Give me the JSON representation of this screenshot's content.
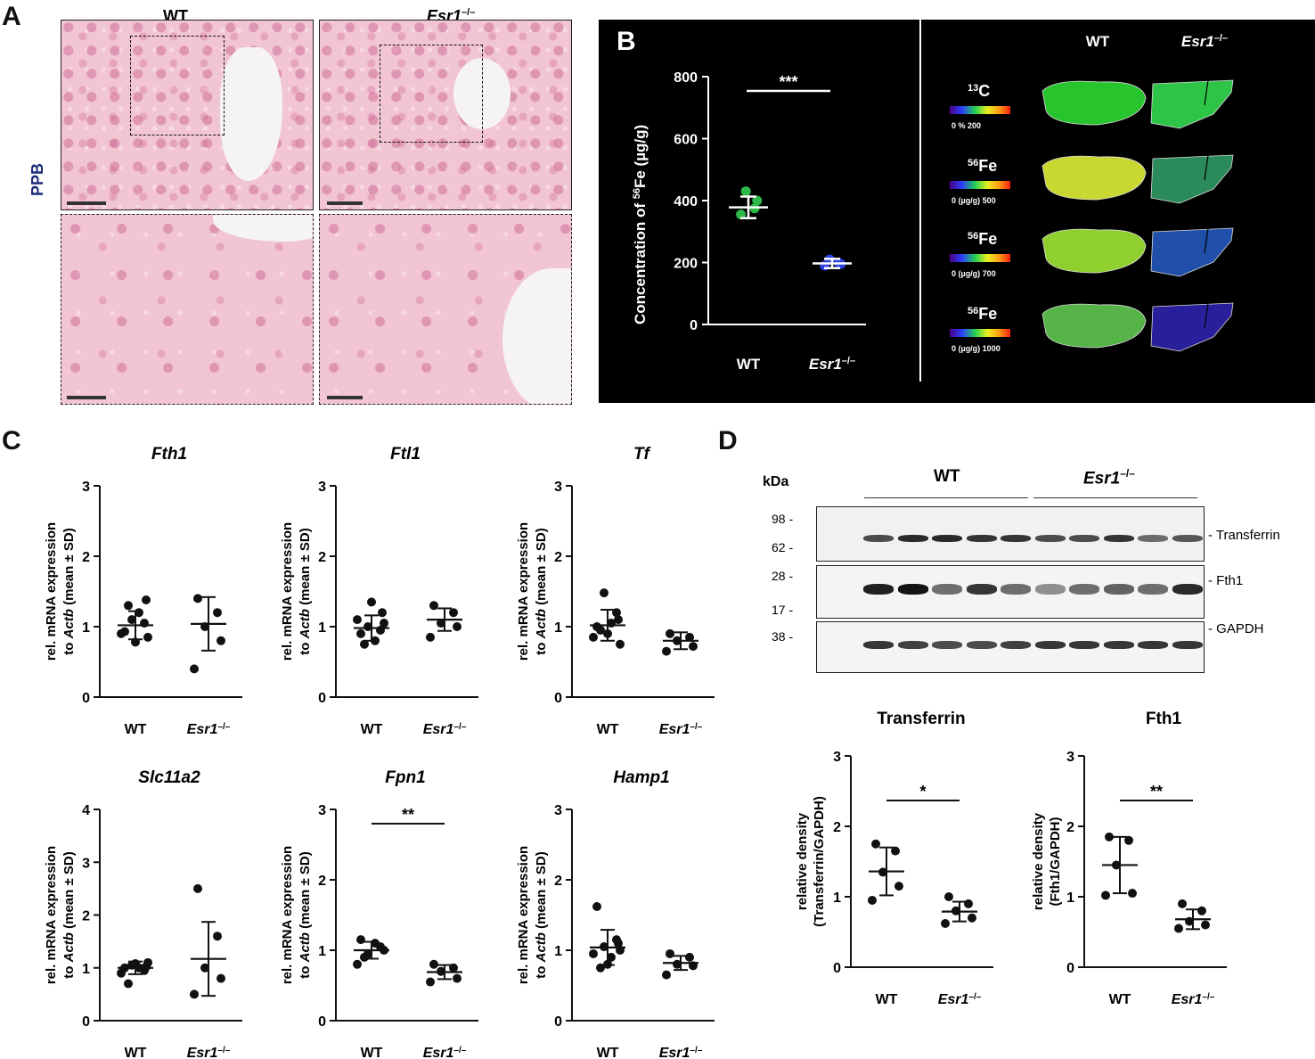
{
  "panels": {
    "a": "A",
    "b": "B",
    "c": "C",
    "d": "D"
  },
  "histology": {
    "wt": "WT",
    "ko": "Esr1",
    "ko_sup": "–/–",
    "stain": "PPB"
  },
  "iron": {
    "ylabel_pre": "Concentration of ",
    "ylabel_sup": "56",
    "ylabel_post": "Fe (µg/g)",
    "sig": "***",
    "yticks": [
      "0",
      "200",
      "400",
      "600",
      "800"
    ],
    "wt_label": "WT",
    "ko_label": "Esr1",
    "ko_sup": "–/–"
  },
  "imaging": {
    "wt": "WT",
    "ko": "Esr1",
    "ko_sup": "–/–",
    "rows": [
      {
        "sup": "13",
        "el": "C",
        "scale": "0    %   200"
      },
      {
        "sup": "56",
        "el": "Fe",
        "scale": "0   (µg/g)    500"
      },
      {
        "sup": "56",
        "el": "Fe",
        "scale": "0   (µg/g)    700"
      },
      {
        "sup": "56",
        "el": "Fe",
        "scale": "0    (µg/g) 1000"
      }
    ]
  },
  "qpcr": {
    "ylabel1": "rel. mRNA expression",
    "ylabel2_pre": "to ",
    "ylabel2_gene": "Actb",
    "ylabel2_post": " (mean ± SD)",
    "wt": "WT",
    "ko": "Esr1",
    "ko_sup": "–/–"
  },
  "western": {
    "kda": "kDa",
    "wt": "WT",
    "ko": "Esr1",
    "ko_sup": "–/–",
    "markers": [
      "98 -",
      "62 -",
      "28 -",
      "17 -",
      "38 -"
    ],
    "bands": [
      "- Transferrin",
      "- Fth1",
      "- GAPDH"
    ]
  },
  "chart_data": [
    {
      "type": "scatter",
      "title": "",
      "ylabel": "Concentration of 56Fe (µg/g)",
      "categories": [
        "WT",
        "Esr1–/–"
      ],
      "ylim": [
        0,
        800
      ],
      "sig": "***",
      "series": [
        {
          "values": [
            355,
            375,
            430,
            400
          ],
          "mean": 378,
          "sd": 35,
          "color": "#2db84a"
        },
        {
          "values": [
            190,
            200,
            210,
            195
          ],
          "mean": 197,
          "sd": 15,
          "color": "#2f3fe0"
        }
      ]
    },
    {
      "type": "scatter",
      "title": "Fth1",
      "ylabel": "rel. mRNA expression to Actb (mean ± SD)",
      "categories": [
        "WT",
        "Esr1–/–"
      ],
      "ylim": [
        0,
        3
      ],
      "yticks": [
        "0",
        "1",
        "2",
        "3"
      ],
      "series": [
        {
          "values": [
            0.93,
            1.05,
            1.1,
            0.85,
            0.9,
            1.2,
            1.3,
            1.38,
            0.78
          ],
          "mean": 1.02,
          "sd": 0.2
        },
        {
          "values": [
            1.4,
            1.2,
            1.0,
            0.8,
            0.4
          ],
          "mean": 1.04,
          "sd": 0.38
        }
      ]
    },
    {
      "type": "scatter",
      "title": "Ftl1",
      "ylabel": "rel. mRNA expression to Actb (mean ± SD)",
      "categories": [
        "WT",
        "Esr1–/–"
      ],
      "ylim": [
        0,
        3
      ],
      "yticks": [
        "0",
        "1",
        "2",
        "3"
      ],
      "series": [
        {
          "values": [
            0.9,
            0.95,
            1.0,
            1.05,
            1.1,
            0.8,
            0.75,
            1.2,
            1.35
          ],
          "mean": 0.98,
          "sd": 0.18
        },
        {
          "values": [
            1.3,
            1.2,
            1.05,
            1.0,
            0.85
          ],
          "mean": 1.1,
          "sd": 0.16
        }
      ]
    },
    {
      "type": "scatter",
      "title": "Tf",
      "ylabel": "rel. mRNA expression to Actb (mean ± SD)",
      "categories": [
        "WT",
        "Esr1–/–"
      ],
      "ylim": [
        0,
        3
      ],
      "yticks": [
        "0",
        "1",
        "2",
        "3"
      ],
      "series": [
        {
          "values": [
            1.0,
            1.2,
            1.48,
            0.75,
            0.85,
            1.05,
            0.95,
            1.1,
            0.9
          ],
          "mean": 1.02,
          "sd": 0.22
        },
        {
          "values": [
            0.9,
            0.85,
            0.8,
            0.72,
            0.65
          ],
          "mean": 0.8,
          "sd": 0.12
        }
      ]
    },
    {
      "type": "scatter",
      "title": "Slc11a2",
      "ylabel": "rel. mRNA expression to Actb (mean ± SD)",
      "categories": [
        "WT",
        "Esr1–/–"
      ],
      "ylim": [
        0,
        4
      ],
      "yticks": [
        "0",
        "1",
        "2",
        "3",
        "4"
      ],
      "series": [
        {
          "values": [
            1.0,
            0.95,
            1.05,
            1.1,
            0.9,
            1.0,
            0.7,
            1.02,
            1.08
          ],
          "mean": 1.0,
          "sd": 0.12
        },
        {
          "values": [
            2.5,
            1.6,
            1.0,
            0.8,
            0.5
          ],
          "mean": 1.17,
          "sd": 0.7
        }
      ]
    },
    {
      "type": "scatter",
      "title": "Fpn1",
      "ylabel": "rel. mRNA expression to Actb (mean ± SD)",
      "categories": [
        "WT",
        "Esr1–/–"
      ],
      "ylim": [
        0,
        3
      ],
      "yticks": [
        "0",
        "1",
        "2",
        "3"
      ],
      "sig": "**",
      "series": [
        {
          "values": [
            1.15,
            1.05,
            0.95,
            1.0,
            0.8,
            1.1,
            0.9
          ],
          "mean": 1.0,
          "sd": 0.12
        },
        {
          "values": [
            0.8,
            0.75,
            0.7,
            0.6,
            0.55
          ],
          "mean": 0.69,
          "sd": 0.1
        }
      ]
    },
    {
      "type": "scatter",
      "title": "Hamp1",
      "ylabel": "rel. mRNA expression to Actb (mean ± SD)",
      "categories": [
        "WT",
        "Esr1–/–"
      ],
      "ylim": [
        0,
        3
      ],
      "yticks": [
        "0",
        "1",
        "2",
        "3"
      ],
      "series": [
        {
          "values": [
            1.62,
            1.15,
            1.05,
            1.0,
            0.95,
            0.9,
            0.75,
            1.1,
            0.8
          ],
          "mean": 1.04,
          "sd": 0.25
        },
        {
          "values": [
            0.95,
            0.9,
            0.8,
            0.78,
            0.65
          ],
          "mean": 0.82,
          "sd": 0.1
        }
      ]
    },
    {
      "type": "scatter",
      "title": "Transferrin",
      "ylabel": "relative density (Transferrin/GAPDH)",
      "categories": [
        "WT",
        "Esr1–/–"
      ],
      "ylim": [
        0,
        3
      ],
      "yticks": [
        "0",
        "1",
        "2",
        "3"
      ],
      "sig": "*",
      "series": [
        {
          "values": [
            1.75,
            1.65,
            1.35,
            1.15,
            0.95
          ],
          "mean": 1.36,
          "sd": 0.34
        },
        {
          "values": [
            1.0,
            0.9,
            0.8,
            0.7,
            0.62
          ],
          "mean": 0.79,
          "sd": 0.14
        }
      ]
    },
    {
      "type": "scatter",
      "title": "Fth1",
      "ylabel": "relative density (Fth1/GAPDH)",
      "categories": [
        "WT",
        "Esr1–/–"
      ],
      "ylim": [
        0,
        3
      ],
      "yticks": [
        "0",
        "1",
        "2",
        "3"
      ],
      "sig": "**",
      "series": [
        {
          "values": [
            1.85,
            1.8,
            1.45,
            1.05,
            1.02
          ],
          "mean": 1.45,
          "sd": 0.4
        },
        {
          "values": [
            0.9,
            0.8,
            0.65,
            0.6,
            0.55
          ],
          "mean": 0.68,
          "sd": 0.14
        }
      ]
    }
  ]
}
